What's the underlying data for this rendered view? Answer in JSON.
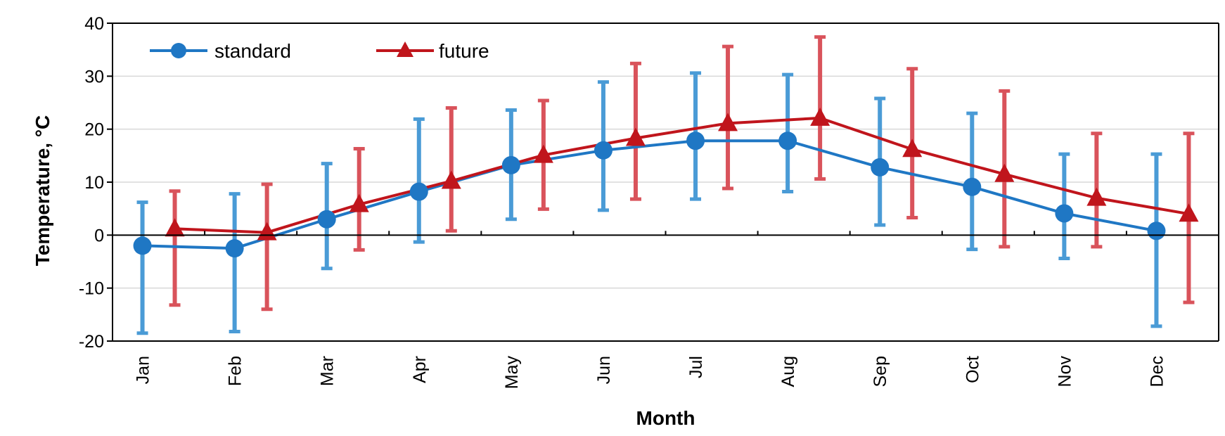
{
  "chart_data": {
    "type": "line",
    "categories": [
      "Jan",
      "Feb",
      "Mar",
      "Apr",
      "May",
      "Jun",
      "Jul",
      "Aug",
      "Sep",
      "Oct",
      "Nov",
      "Dec"
    ],
    "xlabel": "Month",
    "ylabel": "Temperature, °C",
    "ylim": [
      -20,
      40
    ],
    "yticks": [
      -20,
      -10,
      0,
      10,
      20,
      30,
      40
    ],
    "grid": true,
    "legend": "top-left",
    "series": [
      {
        "name": "standard",
        "color": "#1f77c4",
        "errcolor": "#4a9bd6",
        "marker": "circle",
        "values": [
          -2,
          -2.5,
          3,
          8.2,
          13.2,
          16,
          17.8,
          17.8,
          12.8,
          9.1,
          4.1,
          0.8
        ],
        "err_low": [
          -18.5,
          -18.2,
          -6.3,
          -1.3,
          3,
          4.7,
          6.8,
          8.2,
          1.9,
          -2.7,
          -4.4,
          -17.2
        ],
        "err_high": [
          6.2,
          7.8,
          13.5,
          21.9,
          23.6,
          28.9,
          30.6,
          30.3,
          25.8,
          23,
          15.3,
          15.3
        ]
      },
      {
        "name": "future",
        "color": "#c0151c",
        "errcolor": "#d9535b",
        "marker": "triangle",
        "values": [
          1.2,
          0.5,
          5.8,
          10.2,
          15.1,
          18.3,
          21.1,
          22.1,
          16.2,
          11.5,
          7,
          4
        ],
        "err_low": [
          -13.2,
          -14,
          -2.8,
          0.8,
          4.9,
          6.8,
          8.8,
          10.6,
          3.3,
          -2.2,
          -2.2,
          -12.7
        ],
        "err_high": [
          8.3,
          9.6,
          16.3,
          24,
          25.4,
          32.4,
          35.6,
          37.4,
          31.4,
          27.2,
          19.2,
          19.2
        ]
      }
    ]
  }
}
